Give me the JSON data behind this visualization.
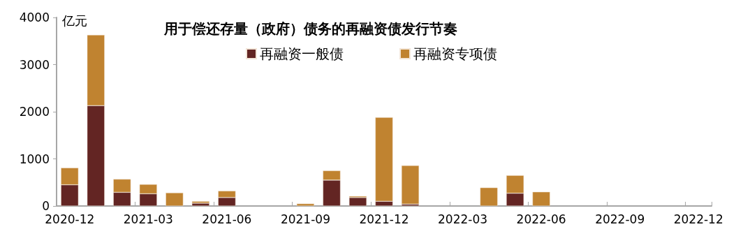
{
  "chart_data": {
    "type": "bar",
    "title": "用于偿还存量（政府）债务的再融资债发行节奏",
    "ylabel": "亿元",
    "stacked": true,
    "legend": "top",
    "grid": false,
    "categories": [
      "2020-12",
      null,
      null,
      "2021-03",
      null,
      null,
      "2021-06",
      null,
      null,
      "2021-09",
      null,
      null,
      "2021-12",
      null,
      null,
      "2022-03",
      null,
      null,
      "2022-06",
      null,
      null,
      "2022-09",
      null,
      null,
      "2022-12"
    ],
    "series": [
      {
        "name": "再融资一般债",
        "color": "#632523",
        "values": [
          450,
          2130,
          290,
          260,
          null,
          60,
          180,
          null,
          null,
          null,
          550,
          180,
          100,
          40,
          null,
          null,
          null,
          270,
          null,
          null,
          null,
          null,
          null,
          null,
          null
        ]
      },
      {
        "name": "再融资专项债",
        "color": "#c08330",
        "values": [
          360,
          1500,
          280,
          200,
          280,
          40,
          140,
          null,
          null,
          50,
          200,
          30,
          1780,
          820,
          null,
          null,
          390,
          380,
          300,
          null,
          null,
          null,
          null,
          null,
          null
        ]
      }
    ],
    "ylim": [
      0,
      4000
    ],
    "yticks": [
      0,
      1000,
      2000,
      3000,
      4000
    ]
  }
}
